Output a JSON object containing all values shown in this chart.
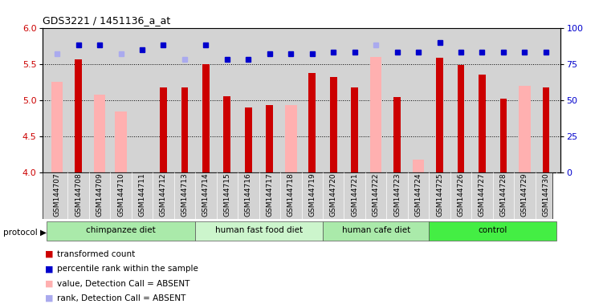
{
  "title": "GDS3221 / 1451136_a_at",
  "samples": [
    "GSM144707",
    "GSM144708",
    "GSM144709",
    "GSM144710",
    "GSM144711",
    "GSM144712",
    "GSM144713",
    "GSM144714",
    "GSM144715",
    "GSM144716",
    "GSM144717",
    "GSM144718",
    "GSM144719",
    "GSM144720",
    "GSM144721",
    "GSM144722",
    "GSM144723",
    "GSM144724",
    "GSM144725",
    "GSM144726",
    "GSM144727",
    "GSM144728",
    "GSM144729",
    "GSM144730"
  ],
  "red_values": [
    null,
    5.56,
    null,
    null,
    null,
    5.18,
    5.18,
    5.5,
    5.05,
    4.9,
    4.93,
    null,
    5.38,
    5.32,
    5.18,
    null,
    5.04,
    null,
    5.58,
    5.48,
    5.35,
    5.02,
    null,
    5.18
  ],
  "pink_values": [
    5.25,
    null,
    5.08,
    4.84,
    null,
    null,
    null,
    null,
    null,
    null,
    null,
    4.93,
    null,
    null,
    null,
    5.6,
    null,
    4.18,
    null,
    null,
    null,
    null,
    5.2,
    null
  ],
  "blue_values": [
    null,
    88,
    88,
    null,
    85,
    88,
    null,
    88,
    78,
    78,
    82,
    82,
    82,
    83,
    83,
    null,
    83,
    83,
    90,
    83,
    83,
    83,
    83,
    83
  ],
  "lightblue_values": [
    82,
    null,
    null,
    82,
    null,
    null,
    78,
    null,
    null,
    null,
    null,
    null,
    null,
    null,
    null,
    88,
    null,
    null,
    null,
    null,
    null,
    null,
    null,
    null
  ],
  "groups": [
    {
      "label": "chimpanzee diet",
      "start": 0,
      "end": 7,
      "color": "#aaeaaa"
    },
    {
      "label": "human fast food diet",
      "start": 7,
      "end": 13,
      "color": "#ccf5cc"
    },
    {
      "label": "human cafe diet",
      "start": 13,
      "end": 18,
      "color": "#aaeaaa"
    },
    {
      "label": "control",
      "start": 18,
      "end": 24,
      "color": "#44ee44"
    }
  ],
  "ylim_left": [
    4.0,
    6.0
  ],
  "ylim_right": [
    0,
    100
  ],
  "yticks_left": [
    4.0,
    4.5,
    5.0,
    5.5,
    6.0
  ],
  "yticks_right": [
    0,
    25,
    50,
    75,
    100
  ],
  "red_color": "#cc0000",
  "pink_color": "#ffb0b0",
  "blue_color": "#0000cc",
  "lightblue_color": "#aaaaee",
  "bg_color": "#d3d3d3",
  "legend_items": [
    {
      "color": "#cc0000",
      "label": "transformed count"
    },
    {
      "color": "#0000cc",
      "label": "percentile rank within the sample"
    },
    {
      "color": "#ffb0b0",
      "label": "value, Detection Call = ABSENT"
    },
    {
      "color": "#aaaaee",
      "label": "rank, Detection Call = ABSENT"
    }
  ]
}
